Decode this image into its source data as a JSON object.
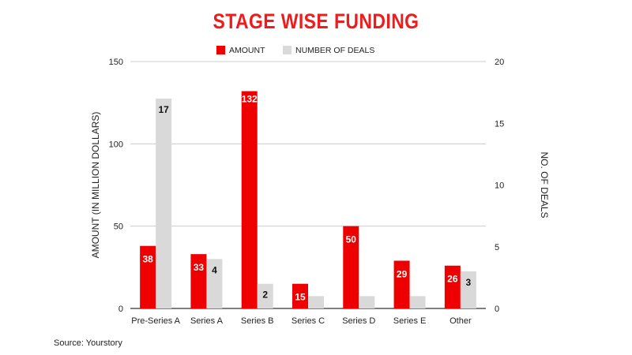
{
  "chart_data": {
    "type": "bar",
    "title": "STAGE WISE FUNDING",
    "categories": [
      "Pre-Series A",
      "Series A",
      "Series B",
      "Series C",
      "Series D",
      "Series E",
      "Other"
    ],
    "series": [
      {
        "name": "AMOUNT",
        "axis": "left",
        "color": "#ee0000",
        "values": [
          38,
          33,
          132,
          15,
          50,
          29,
          26
        ],
        "labels": [
          "38",
          "33",
          "132",
          "15",
          "50",
          "29",
          "26"
        ]
      },
      {
        "name": "NUMBER OF DEALS",
        "axis": "right",
        "color": "#d9d9d9",
        "values": [
          17,
          4,
          2,
          1,
          1,
          1,
          3
        ],
        "labels": [
          "17",
          "4",
          "2",
          "",
          "",
          "",
          "3"
        ]
      }
    ],
    "ylabel": "AMOUNT (IN MILLION DOLLARS)",
    "y2label": "NO. OF DEALS",
    "ylim": [
      0,
      150
    ],
    "y2lim": [
      0,
      20
    ],
    "yticks": [
      "0",
      "50",
      "100",
      "150"
    ],
    "y2ticks": [
      "0",
      "5",
      "10",
      "15",
      "20"
    ],
    "legend_position": "top-center",
    "grid": true
  },
  "source": "Source: Yourstory"
}
